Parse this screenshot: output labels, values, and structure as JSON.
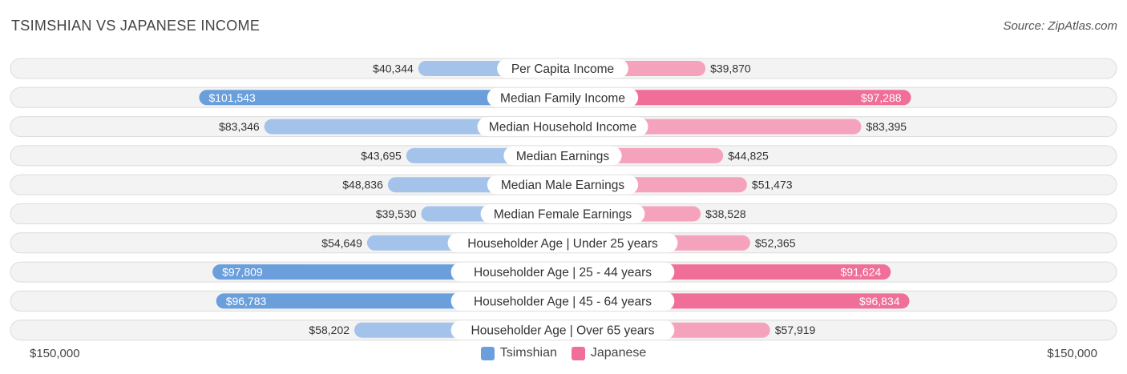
{
  "header": {
    "title": "TSIMSHIAN VS JAPANESE INCOME",
    "source": "Source: ZipAtlas.com"
  },
  "axis": {
    "left_label": "$150,000",
    "right_label": "$150,000"
  },
  "colors": {
    "left_light": "#a4c3ea",
    "left_dark": "#6a9fdc",
    "right_light": "#f5a3bd",
    "right_dark": "#f06f98",
    "row_bg": "#f3f3f3",
    "row_border": "#dcdcdc"
  },
  "legend": [
    {
      "name": "Tsimshian",
      "color": "#6a9fdc"
    },
    {
      "name": "Japanese",
      "color": "#f06f98"
    }
  ],
  "chart_data": {
    "type": "bar",
    "orientation": "horizontal-diverging",
    "max": 150000,
    "categories": [
      "Per Capita Income",
      "Median Family Income",
      "Median Household Income",
      "Median Earnings",
      "Median Male Earnings",
      "Median Female Earnings",
      "Householder Age | Under 25 years",
      "Householder Age | 25 - 44 years",
      "Householder Age | 45 - 64 years",
      "Householder Age | Over 65 years"
    ],
    "series": [
      {
        "name": "Tsimshian",
        "values": [
          40344,
          101543,
          83346,
          43695,
          48836,
          39530,
          54649,
          97809,
          96783,
          58202
        ],
        "labels": [
          "$40,344",
          "$101,543",
          "$83,346",
          "$43,695",
          "$48,836",
          "$39,530",
          "$54,649",
          "$97,809",
          "$96,783",
          "$58,202"
        ]
      },
      {
        "name": "Japanese",
        "values": [
          39870,
          97288,
          83395,
          44825,
          51473,
          38528,
          52365,
          91624,
          96834,
          57919
        ],
        "labels": [
          "$39,870",
          "$97,288",
          "$83,395",
          "$44,825",
          "$51,473",
          "$38,528",
          "$52,365",
          "$91,624",
          "$96,834",
          "$57,919"
        ]
      }
    ]
  }
}
